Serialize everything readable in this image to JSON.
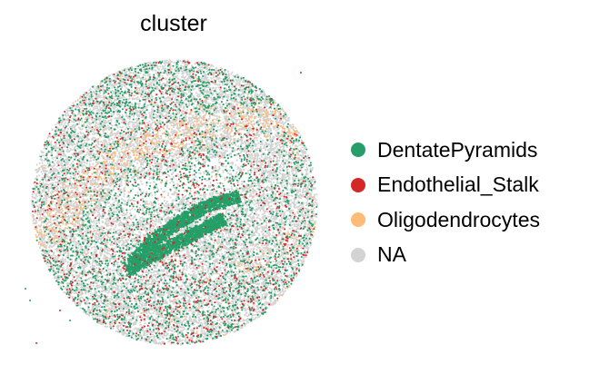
{
  "chart_data": {
    "type": "scatter",
    "title": "cluster",
    "xlabel": "",
    "ylabel": "",
    "grid": false,
    "axes_visible": false,
    "legend_placement": "right",
    "background_category": "NA",
    "series": [
      {
        "name": "DentatePyramids",
        "color": "#279e68"
      },
      {
        "name": "Endothelial_Stalk",
        "color": "#d62728"
      },
      {
        "name": "Oligodendrocytes",
        "color": "#ffbb78"
      },
      {
        "name": "NA",
        "color": "#d3d3d3"
      }
    ]
  }
}
